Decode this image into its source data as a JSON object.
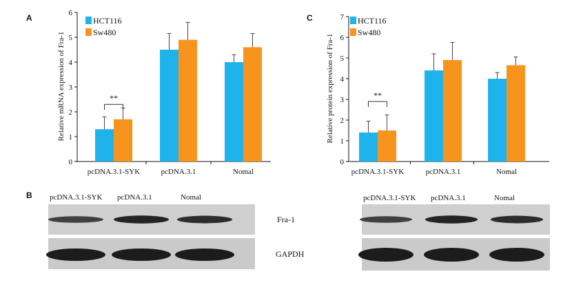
{
  "colors": {
    "hct116": "#1fb3ec",
    "sw480": "#f7941d",
    "axis": "#111111",
    "blot_bg": "#cfcfcf",
    "band": "#1c1c1c"
  },
  "panels": {
    "A": "A",
    "B": "B",
    "C": "C"
  },
  "chart_data": [
    {
      "type": "bar",
      "panel": "A",
      "ylabel": "Relative mRNA expression of Fra-1",
      "xlabel": "",
      "ylim": [
        0,
        6
      ],
      "yticks": [
        "0",
        "1",
        "2",
        "3",
        "4",
        "5",
        "6"
      ],
      "categories": [
        "pcDNA.3.1-SYK",
        "pcDNA.3.1",
        "Nomal"
      ],
      "series": [
        {
          "name": "HCT116",
          "color": "#1fb3ec",
          "values": [
            1.3,
            4.5,
            4.0
          ],
          "errors": [
            0.5,
            0.65,
            0.3
          ]
        },
        {
          "name": "Sw480",
          "color": "#f7941d",
          "values": [
            1.7,
            4.9,
            4.6
          ],
          "errors": [
            0.45,
            0.7,
            0.55
          ]
        }
      ],
      "annotation": "**",
      "legend_placement": "top-left"
    },
    {
      "type": "bar",
      "panel": "C",
      "ylabel": "Relative protein expression of Fra-1",
      "xlabel": "",
      "ylim": [
        0,
        7
      ],
      "yticks": [
        "0",
        "1",
        "2",
        "3",
        "4",
        "5",
        "6",
        "7"
      ],
      "categories": [
        "pcDNA.3.1-SYK",
        "pcDNA.3.1",
        "Nomal"
      ],
      "series": [
        {
          "name": "HCT116",
          "color": "#1fb3ec",
          "values": [
            1.4,
            4.4,
            4.0
          ],
          "errors": [
            0.55,
            0.8,
            0.3
          ]
        },
        {
          "name": "Sw480",
          "color": "#f7941d",
          "values": [
            1.5,
            4.9,
            4.65
          ],
          "errors": [
            0.75,
            0.85,
            0.4
          ]
        }
      ],
      "annotation": "**",
      "legend_placement": "top-left"
    }
  ],
  "blots": {
    "lanes": [
      "pcDNA.3.1-SYK",
      "pcDNA.3.1",
      "Nomal"
    ],
    "rows": [
      {
        "label": "Fra-1",
        "intensities": [
          0.55,
          0.9,
          0.8
        ]
      },
      {
        "label": "GAPDH",
        "intensities": [
          1.0,
          1.0,
          1.0
        ]
      }
    ]
  }
}
